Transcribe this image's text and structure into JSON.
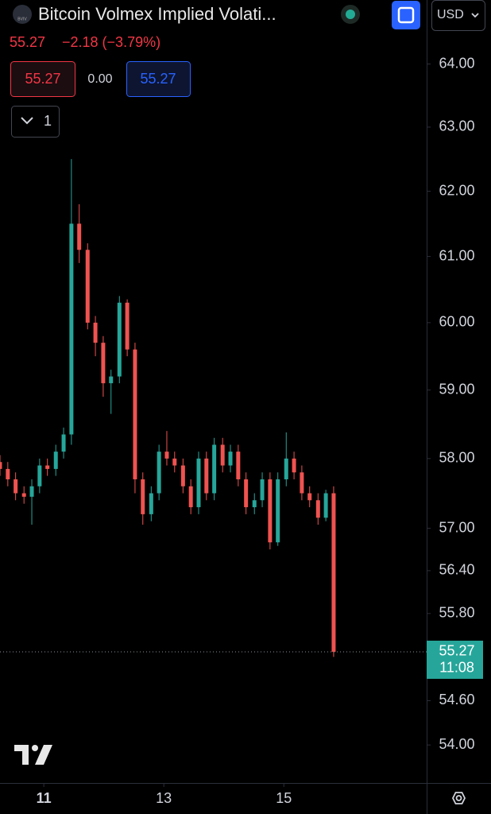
{
  "header": {
    "icon": "BVIV",
    "title": "Bitcoin Volmex Implied Volati...",
    "price": "55.27",
    "change": "−2.18 (−3.79%)",
    "currency": "USD",
    "sell": "55.27",
    "spread": "0.00",
    "buy": "55.27",
    "quantity": "1"
  },
  "chart_data": {
    "type": "candlestick",
    "log": true,
    "up_color": "#26a69a",
    "down_color": "#ef5350",
    "x": [
      10.27,
      10.4,
      10.53,
      10.67,
      10.8,
      10.93,
      11.06,
      11.2,
      11.33,
      11.46,
      11.59,
      11.73,
      11.86,
      11.99,
      12.12,
      12.26,
      12.39,
      12.52,
      12.65,
      12.79,
      12.92,
      13.05,
      13.18,
      13.32,
      13.45,
      13.58,
      13.71,
      13.84,
      13.98,
      14.11,
      14.24,
      14.37,
      14.51,
      14.64,
      14.77,
      14.9,
      15.04,
      15.17,
      15.3,
      15.43,
      15.57,
      15.7,
      15.83
    ],
    "open": [
      57.95,
      57.85,
      57.7,
      57.5,
      57.45,
      57.6,
      57.9,
      57.85,
      58.1,
      58.35,
      61.5,
      61.1,
      60.0,
      59.7,
      59.1,
      59.2,
      60.3,
      59.6,
      57.7,
      57.2,
      57.5,
      58.1,
      58.0,
      57.9,
      57.6,
      57.3,
      58.0,
      57.5,
      58.2,
      57.9,
      58.1,
      57.7,
      57.3,
      57.4,
      57.7,
      56.8,
      57.7,
      58.0,
      57.8,
      57.5,
      57.4,
      57.15,
      57.5
    ],
    "high": [
      58.05,
      57.95,
      57.8,
      57.6,
      57.7,
      58.0,
      58.0,
      58.2,
      58.45,
      62.5,
      61.8,
      61.2,
      60.1,
      59.8,
      59.3,
      60.4,
      60.35,
      59.7,
      57.8,
      57.6,
      58.2,
      58.4,
      58.1,
      58.0,
      57.7,
      58.1,
      58.1,
      58.3,
      58.3,
      58.2,
      58.2,
      57.8,
      57.5,
      57.8,
      57.8,
      57.8,
      58.38,
      58.1,
      57.9,
      57.6,
      57.5,
      57.55,
      57.6
    ],
    "low": [
      57.75,
      57.6,
      57.4,
      57.35,
      57.05,
      57.5,
      57.75,
      57.75,
      58.0,
      58.2,
      60.9,
      59.9,
      59.5,
      58.9,
      58.65,
      59.1,
      59.5,
      57.5,
      57.05,
      57.1,
      57.4,
      57.9,
      57.8,
      57.5,
      57.2,
      57.2,
      57.4,
      57.4,
      57.8,
      57.8,
      57.6,
      57.2,
      57.2,
      57.3,
      56.7,
      56.75,
      57.6,
      57.7,
      57.4,
      57.3,
      57.05,
      57.1,
      55.2
    ],
    "close": [
      57.85,
      57.7,
      57.5,
      57.45,
      57.6,
      57.9,
      57.85,
      58.1,
      58.35,
      61.5,
      61.1,
      60.0,
      59.7,
      59.1,
      59.2,
      60.3,
      59.6,
      57.7,
      57.2,
      57.5,
      58.1,
      58.0,
      57.9,
      57.6,
      57.3,
      58.0,
      57.5,
      58.2,
      57.9,
      58.1,
      57.7,
      57.3,
      57.4,
      57.7,
      56.8,
      57.7,
      58.0,
      57.8,
      57.5,
      57.4,
      57.15,
      57.5,
      55.27
    ],
    "xlim": [
      10.27,
      17.38
    ],
    "xticks": [
      11,
      13,
      15
    ],
    "ylim": [
      53.49,
      65.03
    ],
    "yticks": [
      {
        "value": 64,
        "label": "64.00"
      },
      {
        "value": 63,
        "label": "63.00"
      },
      {
        "value": 62,
        "label": "62.00"
      },
      {
        "value": 61,
        "label": "61.00"
      },
      {
        "value": 60,
        "label": "60.00"
      },
      {
        "value": 59,
        "label": "59.00"
      },
      {
        "value": 58,
        "label": "58.00"
      },
      {
        "value": 57,
        "label": "57.00"
      },
      {
        "value": 56.4,
        "label": "56.40"
      },
      {
        "value": 55.8,
        "label": "55.80"
      },
      {
        "value": 54.6,
        "label": "54.60"
      },
      {
        "value": 54,
        "label": "54.00"
      }
    ],
    "last_price": 55.27,
    "countdown": "11:08"
  }
}
